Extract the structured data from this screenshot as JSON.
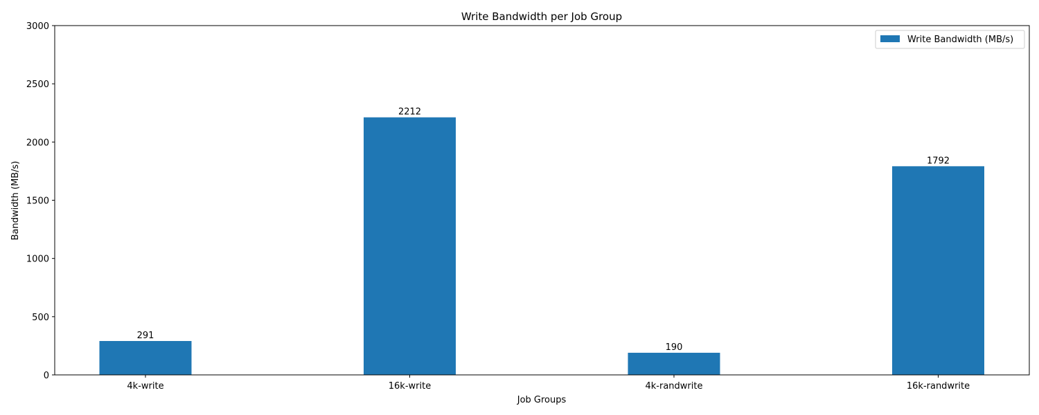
{
  "chart_data": {
    "type": "bar",
    "title": "Write Bandwidth per Job Group",
    "xlabel": "Job Groups",
    "ylabel": "Bandwidth (MB/s)",
    "categories": [
      "4k-write",
      "16k-write",
      "4k-randwrite",
      "16k-randwrite"
    ],
    "series": [
      {
        "name": "Write Bandwidth (MB/s)",
        "color": "#1f77b4",
        "values": [
          291,
          2212,
          190,
          1792
        ]
      }
    ],
    "data_labels": [
      "291",
      "2212",
      "190",
      "1792"
    ],
    "ylim": [
      0,
      3000
    ],
    "yticks": [
      0,
      500,
      1000,
      1500,
      2000,
      2500,
      3000
    ],
    "grid": false,
    "legend_position": "top-right"
  }
}
